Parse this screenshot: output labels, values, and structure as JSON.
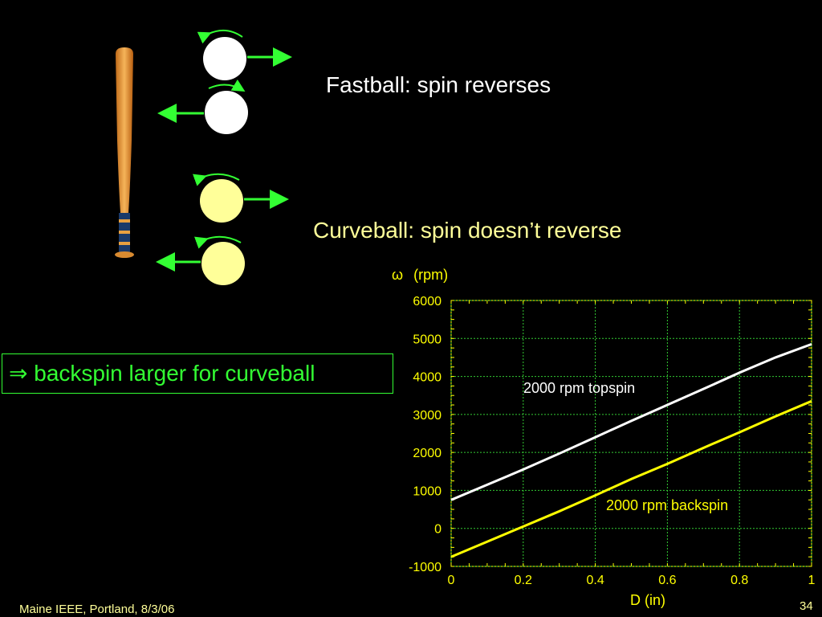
{
  "slide": {
    "fastball_title": "Fastball:  spin reverses",
    "curveball_title": "Curveball:  spin doesn’t reverse",
    "conclusion_arrow": "⇒",
    "conclusion_text": " backspin larger for curveball",
    "footer_left": "Maine IEEE, Portland,  8/3/06",
    "page_number": "34"
  },
  "colors": {
    "background": "#000000",
    "fastball_ball": "#ffffff",
    "curveball_ball": "#ffff99",
    "arrows": "#33ff33",
    "bat": "#e8a040",
    "axis_text": "#ffff00",
    "grid": "#33cc33"
  },
  "chart_data": {
    "type": "line",
    "ylabel_symbol": "ω",
    "ylabel": "(rpm)",
    "xlabel": "D (in)",
    "xlim": [
      0,
      1
    ],
    "ylim": [
      -1000,
      6000
    ],
    "x_ticks": [
      "0",
      "0.2",
      "0.4",
      "0.6",
      "0.8",
      "1"
    ],
    "y_ticks": [
      "6000",
      "5000",
      "4000",
      "3000",
      "2000",
      "1000",
      "0",
      "-1000"
    ],
    "grid": true,
    "x": [
      0,
      0.1,
      0.2,
      0.3,
      0.4,
      0.5,
      0.6,
      0.7,
      0.8,
      0.9,
      1.0
    ],
    "series": [
      {
        "name": "2000 rpm topspin",
        "color": "#ffffff",
        "values": [
          750,
          1150,
          1550,
          1970,
          2400,
          2830,
          3250,
          3670,
          4100,
          4500,
          4850
        ]
      },
      {
        "name": "2000 rpm backspin",
        "color": "#ffff00",
        "values": [
          -750,
          -350,
          50,
          450,
          870,
          1300,
          1700,
          2120,
          2530,
          2950,
          3350
        ]
      }
    ]
  }
}
